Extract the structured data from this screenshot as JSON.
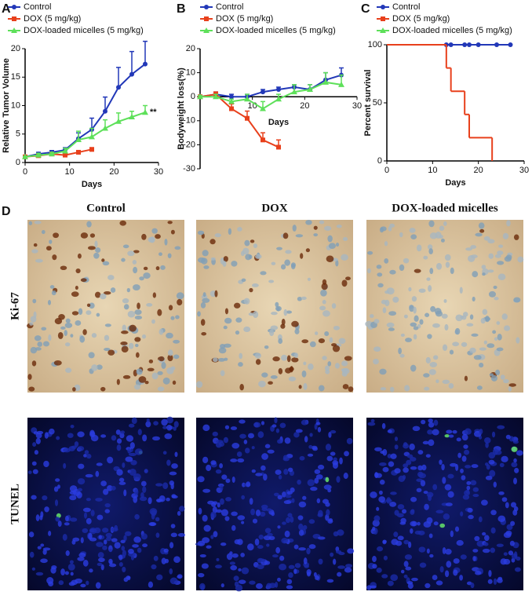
{
  "chart_data": [
    {
      "type": "line",
      "label": "A",
      "xlabel": "Days",
      "ylabel": "Relative Tumor Volume",
      "xlim": [
        0,
        30
      ],
      "xticks": [
        0,
        10,
        20,
        30
      ],
      "ylim": [
        0,
        20
      ],
      "yticks": [
        0,
        5,
        10,
        15,
        20
      ],
      "annotation": "**",
      "series": [
        {
          "name": "Control",
          "color": "#2238b8",
          "x": [
            0,
            3,
            6,
            9,
            12,
            15,
            18,
            21,
            24,
            27
          ],
          "values": [
            1,
            1.5,
            1.8,
            2.2,
            4.2,
            5.8,
            9,
            13.2,
            15.5,
            17.3
          ],
          "errors": [
            0.1,
            0.3,
            0.3,
            0.4,
            1,
            2,
            2.5,
            3.5,
            4,
            4
          ]
        },
        {
          "name": "DOX (5 mg/kg)",
          "color": "#e8401c",
          "x": [
            0,
            3,
            6,
            9,
            12,
            15
          ],
          "values": [
            1,
            1.2,
            1.5,
            1.3,
            1.8,
            2.3
          ],
          "errors": [
            0.1,
            0.2,
            0.2,
            0.2,
            0.3,
            0.3
          ]
        },
        {
          "name": "DOX-loaded micelles  (5 mg/kg)",
          "color": "#5ee05a",
          "x": [
            0,
            3,
            6,
            9,
            12,
            15,
            18,
            21,
            24,
            27
          ],
          "values": [
            1,
            1.3,
            1.5,
            2,
            4,
            4.5,
            6,
            7.2,
            8,
            8.8
          ],
          "errors": [
            0.1,
            0.3,
            0.3,
            0.5,
            1.5,
            1.5,
            1.5,
            1.5,
            1,
            1.2
          ]
        }
      ]
    },
    {
      "type": "line",
      "label": "B",
      "xlabel": "Days",
      "ylabel": "Bodyweight loss(%)",
      "xlim": [
        0,
        30
      ],
      "xticks": [
        10,
        20,
        30
      ],
      "ylim": [
        -30,
        20
      ],
      "yticks": [
        -30,
        -20,
        -10,
        0,
        10,
        20
      ],
      "series": [
        {
          "name": "Control",
          "color": "#2238b8",
          "x": [
            0,
            3,
            6,
            9,
            12,
            15,
            18,
            21,
            24,
            27
          ],
          "values": [
            0,
            1,
            0,
            0,
            2,
            3,
            4,
            3,
            7,
            9
          ],
          "errors": [
            0.5,
            1,
            1,
            1,
            1,
            1,
            1,
            2,
            3,
            3
          ]
        },
        {
          "name": "DOX (5 mg/kg)",
          "color": "#e8401c",
          "x": [
            0,
            3,
            6,
            9,
            12,
            15
          ],
          "values": [
            0,
            1,
            -5,
            -9,
            -18,
            -21
          ],
          "errors": [
            0.5,
            1,
            2,
            3,
            3,
            3
          ]
        },
        {
          "name": "DOX-loaded micelles  (5 mg/kg)",
          "color": "#5ee05a",
          "x": [
            0,
            3,
            6,
            9,
            12,
            15,
            18,
            21,
            24,
            27
          ],
          "values": [
            0,
            0,
            -2,
            -1,
            -5,
            -1,
            2,
            3,
            6,
            5
          ],
          "errors": [
            0.5,
            1,
            1,
            2,
            3,
            2,
            3,
            2,
            4,
            4
          ]
        }
      ]
    },
    {
      "type": "step",
      "label": "C",
      "xlabel": "Days",
      "ylabel": "Percent survival",
      "xlim": [
        0,
        30
      ],
      "xticks": [
        0,
        10,
        20,
        30
      ],
      "ylim": [
        0,
        100
      ],
      "yticks": [
        0,
        50,
        100
      ],
      "series": [
        {
          "name": "DOX-loaded micelles  (5 mg/kg)",
          "color": "#5ee05a",
          "x": [
            0,
            27
          ],
          "values": [
            100,
            100
          ]
        },
        {
          "name": "Control",
          "color": "#2238b8",
          "marker": true,
          "x": [
            0,
            13,
            14,
            17,
            18,
            20,
            24,
            27
          ],
          "values": [
            100,
            100,
            100,
            100,
            100,
            100,
            100,
            100
          ]
        },
        {
          "name": "DOX (5 mg/kg)",
          "color": "#e8401c",
          "x": [
            0,
            13,
            14,
            17,
            18,
            23
          ],
          "values": [
            100,
            80,
            60,
            40,
            20,
            0
          ]
        }
      ]
    }
  ],
  "micrographs": {
    "label": "D",
    "columns": [
      "Control",
      "DOX",
      "DOX-loaded micelles"
    ],
    "rows": [
      "Ki-67",
      "TUNEL"
    ]
  }
}
